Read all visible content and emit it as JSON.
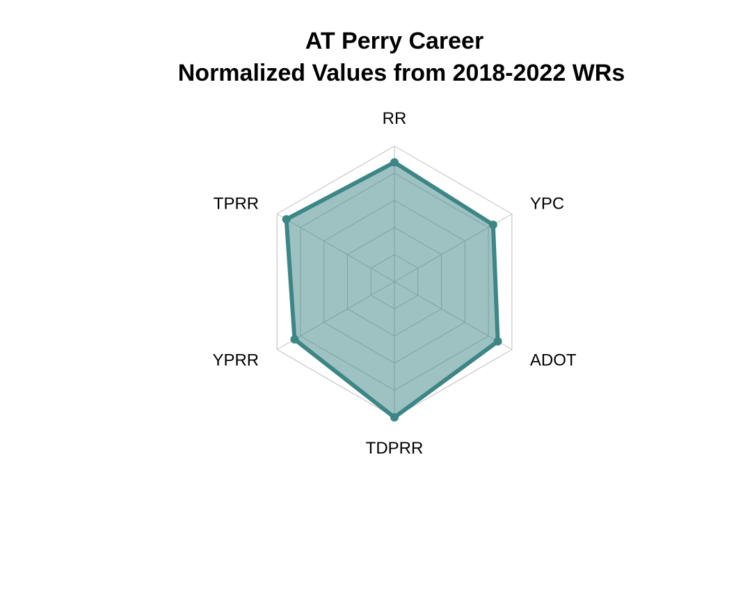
{
  "chart_data": {
    "type": "radar",
    "title": "AT Perry Career",
    "subtitle": "Normalized Values from 2018-2022 WRs",
    "axes": [
      "RR",
      "YPC",
      "ADOT",
      "TDPRR",
      "YPRR",
      "TPRR"
    ],
    "range": [
      0,
      1
    ],
    "grid_levels": 5,
    "grid": true,
    "legend": "none",
    "series": [
      {
        "values": [
          0.88,
          0.84,
          0.88,
          1.0,
          0.85,
          0.92
        ],
        "color": "#3d8686",
        "fill_color": "#3d8686",
        "fill_opacity": 0.5
      }
    ]
  }
}
